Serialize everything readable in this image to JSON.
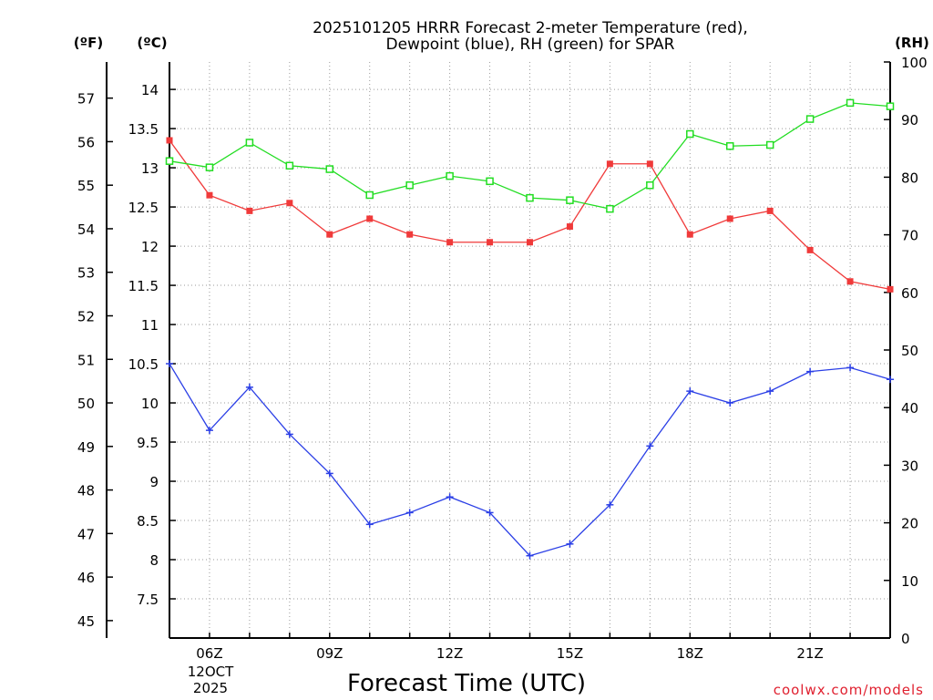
{
  "chart_data": {
    "type": "line",
    "title_line1": "2025101205 HRRR Forecast 2-meter Temperature (red),",
    "title_line2": "Dewpoint (blue), RH (green) for SPAR",
    "x_axis": {
      "label": "Forecast Time (UTC)",
      "range_hours": [
        5,
        23
      ],
      "ticks": [
        {
          "hour": 6,
          "label": "06Z"
        },
        {
          "hour": 9,
          "label": "09Z"
        },
        {
          "hour": 12,
          "label": "12Z"
        },
        {
          "hour": 15,
          "label": "15Z"
        },
        {
          "hour": 18,
          "label": "18Z"
        },
        {
          "hour": 21,
          "label": "21Z"
        }
      ],
      "date_line1": "12OCT",
      "date_line2": "2025"
    },
    "y_left_c": {
      "unit": "(ºC)",
      "range": [
        7.0,
        14.35
      ],
      "ticks": [
        14,
        13.5,
        13,
        12.5,
        12,
        11.5,
        11,
        10.5,
        10,
        9.5,
        9,
        8.5,
        8,
        7.5
      ],
      "tick_labels": [
        "14",
        "13.5",
        "13",
        "12.5",
        "12",
        "11.5",
        "11",
        "10.5",
        "10",
        "9.5",
        "9",
        "8.5",
        "8",
        "7.5"
      ]
    },
    "y_left_f": {
      "unit": "(ºF)",
      "range": [
        44.6,
        57.83
      ],
      "ticks": [
        57,
        56,
        55,
        54,
        53,
        52,
        51,
        50,
        49,
        48,
        47,
        46,
        45
      ],
      "tick_labels": [
        "57",
        "56",
        "55",
        "54",
        "53",
        "52",
        "51",
        "50",
        "49",
        "48",
        "47",
        "46",
        "45"
      ]
    },
    "y_right_rh": {
      "unit": "(RH)",
      "range": [
        0,
        100
      ],
      "ticks": [
        100,
        90,
        80,
        70,
        60,
        50,
        40,
        30,
        20,
        10,
        0
      ],
      "tick_labels": [
        "100",
        "90",
        "80",
        "70",
        "60",
        "50",
        "40",
        "30",
        "20",
        "10",
        "0"
      ]
    },
    "x_hours": [
      5,
      6,
      7,
      8,
      9,
      10,
      11,
      12,
      13,
      14,
      15,
      16,
      17,
      18,
      19,
      20,
      21,
      22,
      23
    ],
    "series": [
      {
        "name": "2-meter Temperature",
        "color": "#f03a3a",
        "axis": "celsius",
        "marker": "filled-square",
        "values": [
          13.35,
          12.65,
          12.45,
          12.55,
          12.15,
          12.35,
          12.15,
          12.05,
          12.05,
          12.05,
          12.25,
          13.05,
          13.05,
          12.15,
          12.35,
          12.45,
          11.95,
          11.55,
          11.45
        ]
      },
      {
        "name": "Dewpoint",
        "color": "#2b3fe6",
        "axis": "celsius",
        "marker": "plus",
        "values": [
          10.5,
          9.65,
          10.2,
          9.6,
          9.1,
          8.45,
          8.6,
          8.8,
          8.6,
          8.05,
          8.2,
          8.7,
          9.45,
          10.15,
          10.0,
          10.15,
          10.4,
          10.45,
          10.3
        ]
      },
      {
        "name": "RH",
        "color": "#22dd22",
        "axis": "rh",
        "marker": "open-square",
        "values": [
          82.8,
          81.7,
          86.0,
          82.0,
          81.4,
          76.9,
          78.6,
          80.2,
          79.3,
          76.4,
          76.0,
          74.5,
          78.6,
          87.5,
          85.4,
          85.6,
          90.1,
          92.9,
          92.3
        ]
      }
    ]
  },
  "credit": "coolwx.com/models"
}
